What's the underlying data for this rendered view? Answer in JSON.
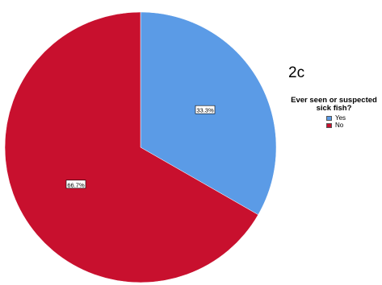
{
  "panel_label": "2c",
  "chart_data": {
    "type": "pie",
    "title": "",
    "legend_title": "Ever seen or suspected sick fish?",
    "legend_placement": "right",
    "slices": [
      {
        "label": "Yes",
        "value": 33.3,
        "value_label": "33.3%",
        "color": "#5b9be6"
      },
      {
        "label": "No",
        "value": 66.7,
        "value_label": "66.7%",
        "color": "#c8102e"
      }
    ]
  }
}
